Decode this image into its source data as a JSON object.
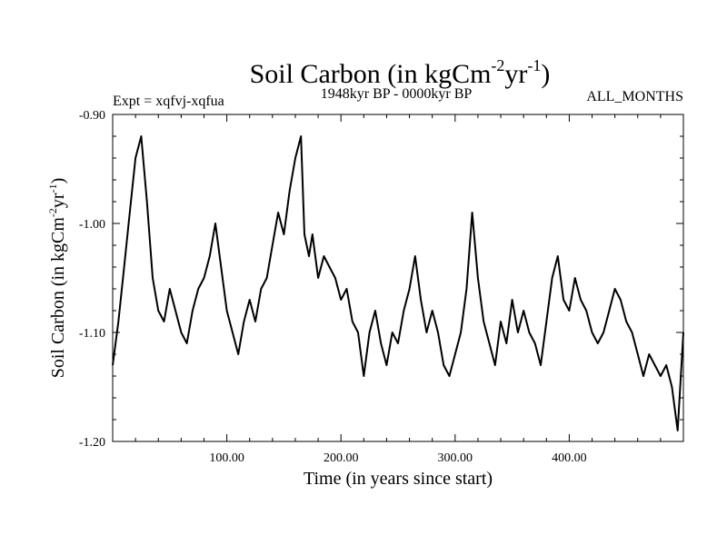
{
  "chart_data": {
    "type": "line",
    "title": "Soil Carbon (in kgCm",
    "title_sup1": "-2",
    "title_mid": "yr",
    "title_sup2": "-1",
    "title_end": ")",
    "subtitle_left": "Expt = xqfvj-xqfua",
    "subtitle_center": "1948kyr BP - 0000kyr BP",
    "subtitle_right": "ALL_MONTHS",
    "xlabel": "Time (in years since start)",
    "ylabel": "Soil Carbon (in kgCm",
    "ylabel_sup1": "-2",
    "ylabel_mid": "yr",
    "ylabel_sup2": "-1",
    "ylabel_end": ")",
    "xlim": [
      0,
      500
    ],
    "ylim": [
      -1.2,
      -0.9
    ],
    "xticks": [
      {
        "value": 100,
        "label": "100.00"
      },
      {
        "value": 200,
        "label": "200.00"
      },
      {
        "value": 300,
        "label": "300.00"
      },
      {
        "value": 400,
        "label": "400.00"
      }
    ],
    "yticks": [
      {
        "value": -0.9,
        "label": "-0.90"
      },
      {
        "value": -1.0,
        "label": "-1.00"
      },
      {
        "value": -1.1,
        "label": "-1.10"
      },
      {
        "value": -1.2,
        "label": "-1.20"
      }
    ],
    "series": [
      {
        "name": "Soil Carbon",
        "x": [
          0,
          5,
          10,
          15,
          20,
          25,
          30,
          35,
          40,
          45,
          50,
          55,
          60,
          65,
          70,
          75,
          80,
          85,
          90,
          95,
          100,
          105,
          110,
          115,
          120,
          125,
          130,
          135,
          140,
          145,
          150,
          155,
          160,
          165,
          168,
          172,
          175,
          180,
          185,
          190,
          195,
          200,
          205,
          210,
          215,
          220,
          225,
          230,
          235,
          240,
          245,
          250,
          255,
          260,
          265,
          270,
          275,
          280,
          285,
          290,
          295,
          300,
          305,
          310,
          315,
          320,
          325,
          330,
          335,
          340,
          345,
          350,
          355,
          360,
          365,
          370,
          375,
          380,
          385,
          390,
          395,
          400,
          405,
          410,
          415,
          420,
          425,
          430,
          435,
          440,
          445,
          450,
          455,
          460,
          465,
          470,
          475,
          480,
          485,
          490,
          495,
          500
        ],
        "values": [
          -1.13,
          -1.09,
          -1.04,
          -0.99,
          -0.94,
          -0.92,
          -0.98,
          -1.05,
          -1.08,
          -1.09,
          -1.06,
          -1.08,
          -1.1,
          -1.11,
          -1.08,
          -1.06,
          -1.05,
          -1.03,
          -1.0,
          -1.04,
          -1.08,
          -1.1,
          -1.12,
          -1.09,
          -1.07,
          -1.09,
          -1.06,
          -1.05,
          -1.02,
          -0.99,
          -1.01,
          -0.97,
          -0.94,
          -0.92,
          -1.01,
          -1.03,
          -1.01,
          -1.05,
          -1.03,
          -1.04,
          -1.05,
          -1.07,
          -1.06,
          -1.09,
          -1.1,
          -1.14,
          -1.1,
          -1.08,
          -1.11,
          -1.13,
          -1.1,
          -1.11,
          -1.08,
          -1.06,
          -1.03,
          -1.07,
          -1.1,
          -1.08,
          -1.1,
          -1.13,
          -1.14,
          -1.12,
          -1.1,
          -1.06,
          -0.99,
          -1.05,
          -1.09,
          -1.11,
          -1.13,
          -1.09,
          -1.11,
          -1.07,
          -1.1,
          -1.08,
          -1.1,
          -1.11,
          -1.13,
          -1.09,
          -1.05,
          -1.03,
          -1.07,
          -1.08,
          -1.05,
          -1.07,
          -1.08,
          -1.1,
          -1.11,
          -1.1,
          -1.08,
          -1.06,
          -1.07,
          -1.09,
          -1.1,
          -1.12,
          -1.14,
          -1.12,
          -1.13,
          -1.14,
          -1.13,
          -1.15,
          -1.19,
          -1.1
        ]
      }
    ]
  }
}
